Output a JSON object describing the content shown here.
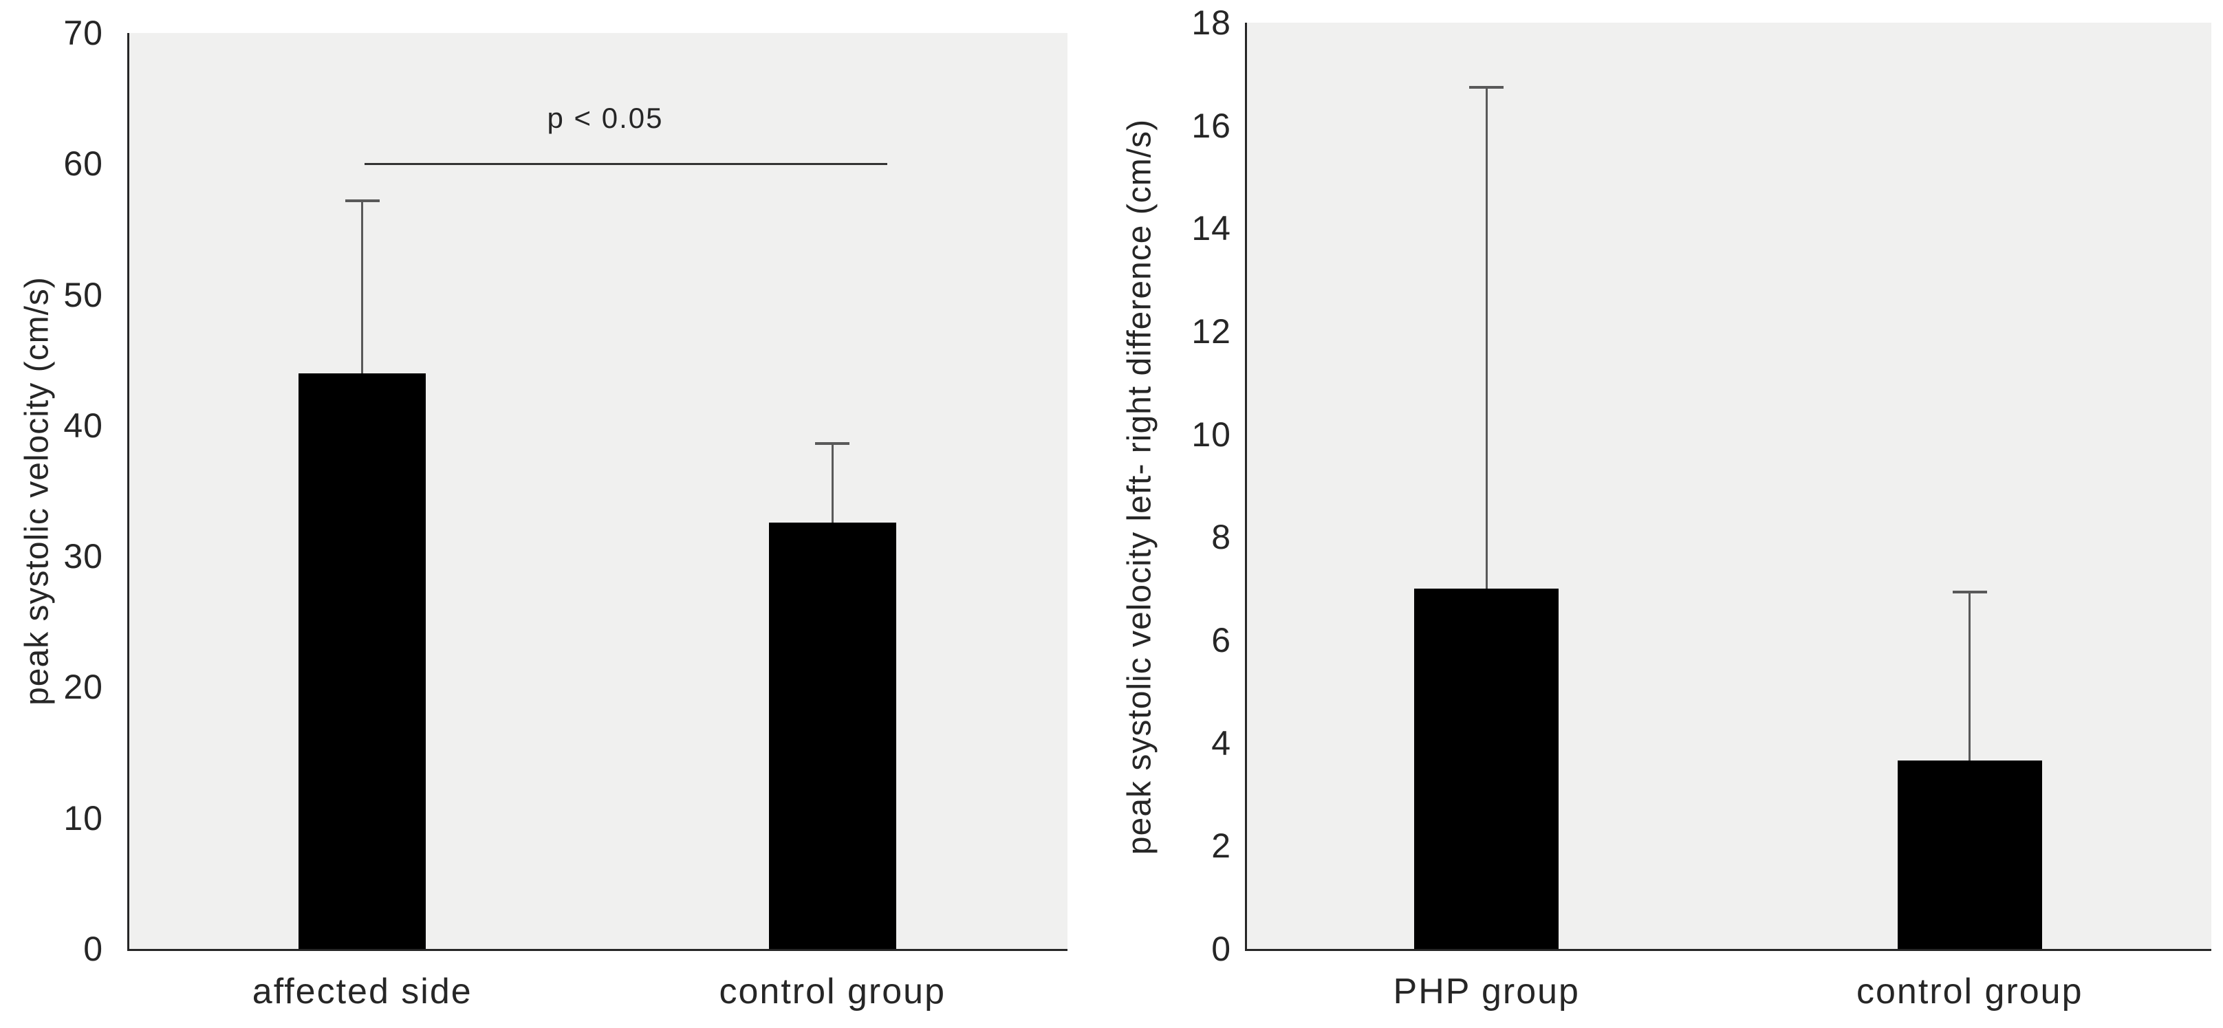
{
  "figure": {
    "background": "#ffffff",
    "plot_background": "#f0f0ef",
    "bar_color": "#000000",
    "axis_color": "#262626",
    "error_bar_color": "#595959"
  },
  "chart_data": [
    {
      "type": "bar",
      "title": "",
      "ylabel": "peak systolic velocity (cm/s)",
      "xlabel": "",
      "categories": [
        "affected side",
        "control group"
      ],
      "values": [
        44,
        32.6
      ],
      "error_up": [
        13.2,
        6.0
      ],
      "ylim": [
        0,
        70
      ],
      "yticks": [
        0,
        10,
        20,
        30,
        40,
        50,
        60,
        70
      ],
      "grid": false,
      "legend": "none",
      "annotation": {
        "text": "p < 0.05",
        "y_value": 60
      }
    },
    {
      "type": "bar",
      "title": "",
      "ylabel": "peak systolic velocity left- right difference (cm/s)",
      "xlabel": "",
      "categories": [
        "PHP group",
        "control group"
      ],
      "values": [
        7.0,
        3.66
      ],
      "error_up": [
        9.74,
        3.28
      ],
      "ylim": [
        0,
        18
      ],
      "yticks": [
        0,
        2,
        4,
        6,
        8,
        10,
        12,
        14,
        16,
        18
      ],
      "grid": false,
      "legend": "none",
      "annotation": null
    }
  ]
}
